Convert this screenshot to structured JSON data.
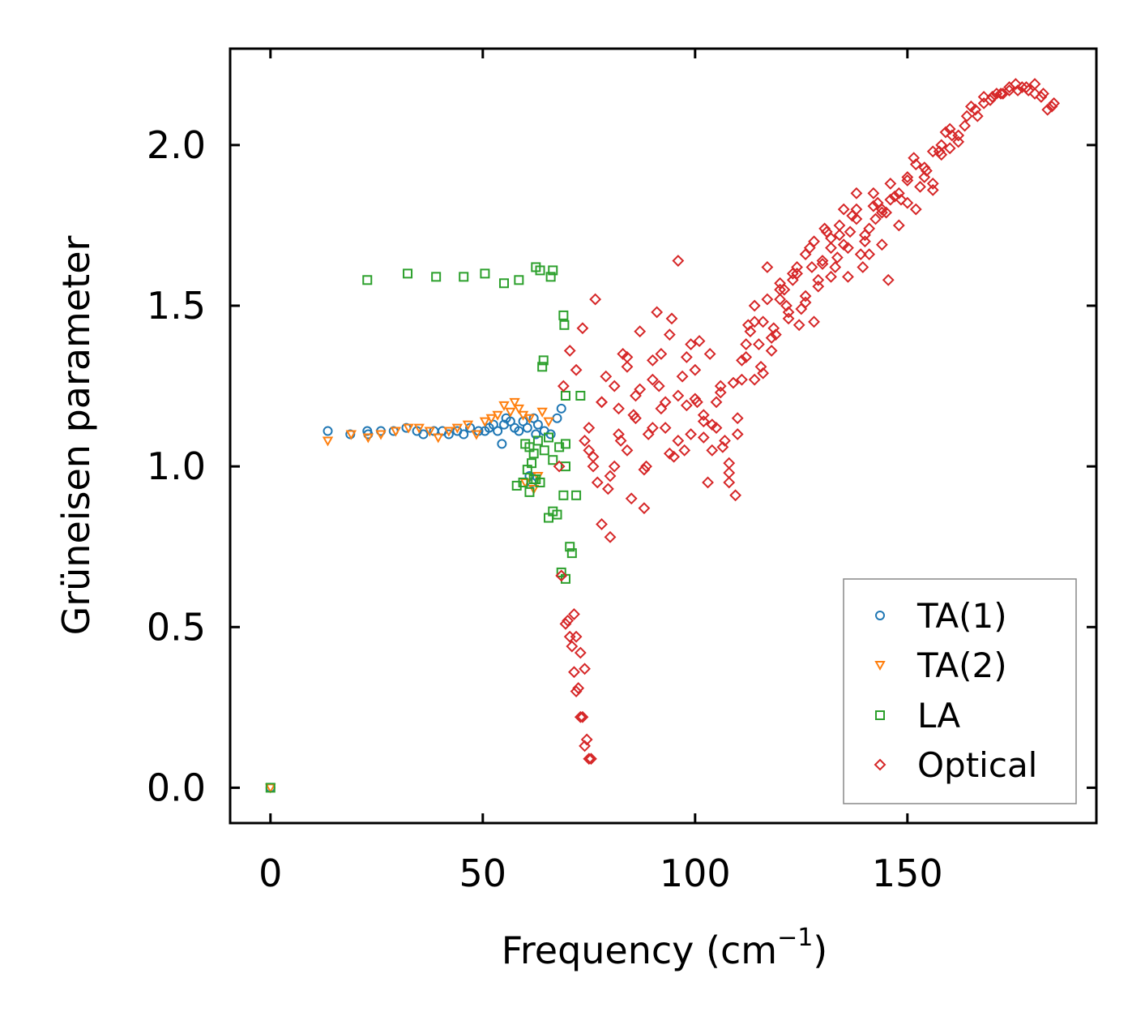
{
  "chart_data": {
    "type": "scatter",
    "xlabel": "Frequency (cm",
    "xlabel_sup": "−1",
    "xlabel_close": ")",
    "ylabel": "Grüneisen parameter",
    "xlim": [
      -9.5,
      194.5
    ],
    "ylim": [
      -0.11,
      2.3
    ],
    "x_ticks": [
      0,
      50,
      100,
      150
    ],
    "y_ticks": [
      0.0,
      0.5,
      1.0,
      1.5,
      2.0
    ],
    "x_tick_labels": [
      "0",
      "50",
      "100",
      "150"
    ],
    "y_tick_labels": [
      "0.0",
      "0.5",
      "1.0",
      "1.5",
      "2.0"
    ],
    "legend_position": "lower-right",
    "series": [
      {
        "name": "TA(1)",
        "marker": "circle",
        "color": "#1f77b4",
        "x": [
          0,
          13.5,
          18.8,
          22.8,
          23.0,
          26.0,
          29.0,
          32.0,
          34.5,
          36.0,
          38.5,
          40.5,
          42.0,
          44.0,
          45.5,
          47.0,
          49.0,
          50.5,
          51.5,
          52.5,
          53.5,
          54.5,
          55.0,
          55.5,
          56.5,
          57.5,
          58.5,
          59.5,
          60.5,
          61.0,
          61.5,
          62.0,
          62.5,
          63.0,
          64.5,
          66.0,
          67.5,
          68.5
        ],
        "y": [
          0.0,
          1.11,
          1.1,
          1.11,
          1.1,
          1.11,
          1.11,
          1.12,
          1.11,
          1.1,
          1.11,
          1.11,
          1.1,
          1.11,
          1.1,
          1.12,
          1.11,
          1.11,
          1.12,
          1.13,
          1.11,
          1.07,
          1.13,
          1.15,
          1.14,
          1.12,
          1.11,
          1.14,
          1.12,
          0.97,
          0.95,
          1.15,
          1.1,
          1.13,
          1.11,
          1.1,
          1.15,
          1.18
        ]
      },
      {
        "name": "TA(2)",
        "marker": "triangle-down",
        "color": "#ff7f0e",
        "x": [
          0,
          13.5,
          19.0,
          23.0,
          26.0,
          29.5,
          32.5,
          35.0,
          37.5,
          39.5,
          42.0,
          44.0,
          46.5,
          48.5,
          50.5,
          52.0,
          53.5,
          55.0,
          56.5,
          57.5,
          58.5,
          59.5,
          60.0,
          61.0,
          62.0,
          63.0,
          64.0,
          65.5
        ],
        "y": [
          0.0,
          1.08,
          1.1,
          1.09,
          1.1,
          1.11,
          1.12,
          1.12,
          1.11,
          1.09,
          1.11,
          1.12,
          1.13,
          1.1,
          1.14,
          1.15,
          1.16,
          1.19,
          1.17,
          1.2,
          1.18,
          1.16,
          0.95,
          1.15,
          0.93,
          0.97,
          1.17,
          1.14
        ]
      },
      {
        "name": "LA",
        "marker": "square",
        "color": "#2ca02c",
        "x": [
          0,
          22.8,
          32.3,
          39.0,
          45.5,
          50.5,
          55.0,
          58.5,
          62.5,
          63.5,
          66.0,
          66.5,
          69.0,
          69.2,
          64.0,
          64.3,
          69.5,
          73.0,
          60.0,
          61.0,
          62.0,
          63.0,
          64.5,
          65.5,
          66.5,
          68.0,
          69.5,
          58.0,
          59.5,
          61.0,
          62.5,
          63.5,
          65.5,
          66.5,
          67.5,
          69.0,
          72.0,
          70.5,
          71.0,
          68.5,
          69.5,
          60.5,
          61.5,
          69.5,
          62.0
        ],
        "y": [
          0.0,
          1.58,
          1.6,
          1.59,
          1.59,
          1.6,
          1.57,
          1.58,
          1.62,
          1.61,
          1.59,
          1.61,
          1.47,
          1.44,
          1.31,
          1.33,
          1.22,
          1.22,
          1.07,
          1.06,
          1.04,
          1.08,
          1.05,
          1.09,
          1.02,
          1.06,
          1.07,
          0.94,
          0.95,
          0.92,
          0.96,
          0.95,
          0.84,
          0.86,
          0.85,
          0.91,
          0.91,
          0.75,
          0.73,
          0.67,
          0.65,
          0.99,
          1.01,
          1.0,
          0.96
        ]
      },
      {
        "name": "Optical",
        "marker": "diamond",
        "color": "#d62728",
        "x": [
          68.5,
          70.0,
          71.5,
          72.0,
          73.0,
          74.0,
          75.0,
          69.5,
          71.0,
          72.5,
          73.5,
          74.5,
          70.5,
          71.5,
          72.0,
          73.0,
          74.0,
          75.5,
          68.0,
          69.0,
          70.5,
          72.0,
          73.5,
          75.0,
          76.5,
          78.0,
          79.5,
          81.0,
          82.5,
          84.0,
          85.5,
          87.0,
          88.5,
          90.0,
          91.5,
          93.0,
          94.5,
          96.0,
          97.5,
          99.0,
          100.5,
          102.0,
          103.5,
          105.0,
          106.5,
          108.0,
          109.5,
          111.0,
          112.5,
          114.0,
          115.5,
          117.0,
          118.5,
          120.0,
          121.5,
          123.0,
          124.5,
          126.0,
          127.5,
          129.0,
          130.5,
          132.0,
          133.5,
          135.0,
          136.5,
          138.0,
          139.5,
          141.0,
          142.5,
          144.0,
          145.5,
          147.0,
          148.5,
          150.0,
          151.5,
          153.0,
          154.5,
          156.0,
          157.5,
          159.0,
          160.5,
          162.0,
          163.5,
          165.0,
          166.5,
          168.0,
          169.5,
          171.0,
          172.5,
          174.0,
          175.5,
          177.0,
          178.5,
          180.0,
          181.5,
          183.0,
          184.5,
          74.0,
          76.0,
          78.0,
          80.0,
          82.0,
          84.0,
          86.0,
          88.0,
          90.0,
          92.0,
          94.0,
          96.0,
          98.0,
          100.0,
          102.0,
          104.0,
          106.0,
          108.0,
          110.0,
          112.0,
          114.0,
          116.0,
          118.0,
          120.0,
          122.0,
          124.0,
          126.0,
          128.0,
          130.0,
          132.0,
          134.0,
          136.0,
          138.0,
          140.0,
          142.0,
          144.0,
          146.0,
          148.0,
          150.0,
          152.0,
          154.0,
          156.0,
          158.0,
          160.0,
          75.0,
          77.0,
          79.0,
          81.0,
          83.0,
          85.0,
          87.0,
          89.0,
          91.0,
          93.0,
          95.0,
          97.0,
          99.0,
          101.0,
          103.0,
          105.0,
          107.0,
          109.0,
          111.0,
          113.0,
          115.0,
          117.0,
          119.0,
          121.0,
          123.0,
          125.0,
          127.0,
          129.0,
          131.0,
          133.0,
          135.0,
          137.0,
          139.0,
          141.0,
          143.0,
          145.0,
          76.0,
          78.0,
          80.0,
          82.0,
          84.0,
          86.0,
          88.0,
          90.0,
          92.0,
          94.0,
          96.0,
          98.0,
          100.0,
          102.0,
          104.0,
          106.0,
          108.0,
          110.0,
          112.0,
          114.0,
          116.0,
          118.0,
          120.0,
          122.0,
          124.0,
          126.0,
          128.0,
          130.0,
          132.0,
          134.0,
          136.0,
          138.0,
          140.0,
          142.0,
          144.0,
          146.0,
          148.0,
          150.0,
          152.0,
          154.0,
          156.0,
          158.0,
          160.0,
          162.0,
          164.0,
          166.0,
          168.0,
          170.0,
          172.0,
          174.0,
          176.0,
          178.0,
          180.0,
          182.0,
          184.0
        ],
        "y": [
          0.66,
          0.52,
          0.54,
          0.47,
          0.42,
          0.37,
          0.09,
          0.51,
          0.44,
          0.31,
          0.22,
          0.15,
          0.47,
          0.36,
          0.3,
          0.22,
          0.13,
          0.09,
          1.0,
          1.25,
          1.36,
          1.3,
          1.43,
          1.05,
          1.52,
          1.2,
          0.93,
          1.25,
          1.08,
          1.34,
          1.16,
          1.42,
          1.0,
          1.33,
          1.25,
          1.12,
          1.46,
          1.64,
          1.05,
          1.38,
          1.2,
          1.16,
          1.35,
          1.12,
          1.06,
          0.98,
          0.91,
          1.27,
          1.44,
          1.5,
          1.31,
          1.62,
          1.43,
          1.55,
          1.5,
          1.58,
          1.44,
          1.66,
          1.62,
          1.58,
          1.74,
          1.71,
          1.65,
          1.8,
          1.73,
          1.85,
          1.62,
          1.66,
          1.77,
          1.8,
          1.58,
          1.84,
          1.83,
          1.9,
          1.96,
          1.87,
          1.92,
          1.86,
          1.98,
          2.04,
          2.03,
          2.01,
          2.06,
          2.12,
          2.09,
          2.15,
          2.14,
          2.16,
          2.16,
          2.17,
          2.19,
          2.18,
          2.17,
          2.16,
          2.15,
          2.11,
          2.13,
          1.08,
          1.0,
          0.82,
          0.78,
          1.18,
          1.05,
          1.22,
          0.87,
          1.12,
          1.35,
          1.04,
          1.22,
          1.19,
          1.3,
          1.09,
          1.13,
          1.25,
          1.01,
          1.15,
          1.38,
          1.45,
          1.29,
          1.4,
          1.52,
          1.48,
          1.6,
          1.53,
          1.45,
          1.63,
          1.68,
          1.72,
          1.59,
          1.77,
          1.7,
          1.81,
          1.69,
          1.83,
          1.75,
          1.89,
          1.8,
          1.93,
          1.88,
          1.97,
          1.99,
          1.12,
          0.95,
          1.28,
          1.0,
          1.35,
          0.9,
          1.24,
          1.1,
          1.48,
          1.2,
          1.03,
          1.28,
          1.1,
          1.39,
          0.95,
          1.2,
          1.08,
          1.26,
          1.33,
          1.42,
          1.38,
          1.52,
          1.41,
          1.55,
          1.6,
          1.49,
          1.68,
          1.56,
          1.73,
          1.62,
          1.69,
          1.78,
          1.66,
          1.74,
          1.82,
          1.79,
          1.03,
          1.2,
          0.97,
          1.1,
          1.31,
          1.15,
          0.99,
          1.27,
          1.18,
          1.41,
          1.08,
          1.34,
          1.21,
          1.14,
          1.05,
          1.23,
          0.95,
          1.1,
          1.34,
          1.27,
          1.45,
          1.36,
          1.57,
          1.46,
          1.62,
          1.51,
          1.7,
          1.64,
          1.59,
          1.75,
          1.68,
          1.8,
          1.72,
          1.85,
          1.79,
          1.88,
          1.85,
          1.82,
          1.94,
          1.9,
          1.98,
          2.0,
          2.05,
          2.03,
          2.09,
          2.11,
          2.13,
          2.15,
          2.16,
          2.18,
          2.17,
          2.18,
          2.19,
          2.16,
          2.12
        ]
      }
    ]
  }
}
